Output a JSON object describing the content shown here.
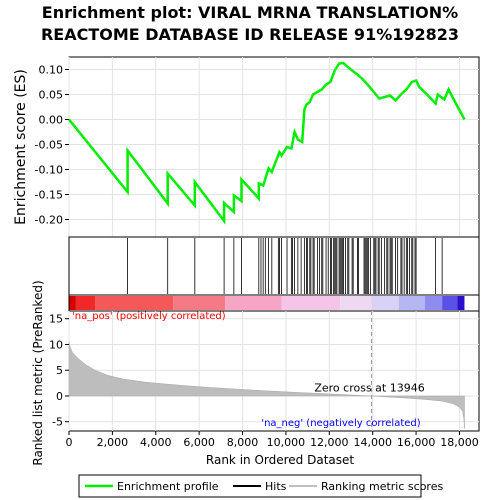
{
  "chart_data": {
    "type": "line",
    "title_lines": [
      "Enrichment plot: VIRAL MRNA TRANSLATION%",
      "REACTOME DATABASE ID RELEASE 91%192823"
    ],
    "top_panel": {
      "ylabel": "Enrichment score (ES)",
      "ylim": [
        -0.235,
        0.125
      ],
      "yticks": [
        -0.2,
        -0.15,
        -0.1,
        -0.05,
        0.0,
        0.05,
        0.1
      ],
      "ytick_labels": [
        "-0.20",
        "-0.15",
        "-0.10",
        "-0.05",
        "0.00",
        "0.05",
        "0.10"
      ],
      "series_name": "Enrichment profile",
      "color": "#00ee00",
      "x": [
        0,
        2700,
        2701,
        4550,
        4551,
        5800,
        5801,
        7150,
        7151,
        7600,
        7601,
        7950,
        7951,
        8750,
        8751,
        8950,
        9200,
        9350,
        9700,
        9800,
        10050,
        10250,
        10400,
        10550,
        10750,
        10850,
        10950,
        11100,
        11250,
        11450,
        11650,
        11850,
        12050,
        12250,
        12450,
        12650,
        12850,
        13050,
        13300,
        13550,
        13800,
        14050,
        14300,
        14550,
        14800,
        15050,
        15300,
        15550,
        15800,
        16000,
        16150,
        16550,
        16900,
        17000,
        17300,
        17500,
        17800,
        18230
      ],
      "y": [
        0.0,
        -0.145,
        -0.062,
        -0.168,
        -0.108,
        -0.172,
        -0.125,
        -0.203,
        -0.167,
        -0.185,
        -0.152,
        -0.163,
        -0.12,
        -0.158,
        -0.128,
        -0.132,
        -0.098,
        -0.105,
        -0.065,
        -0.072,
        -0.055,
        -0.058,
        -0.025,
        -0.04,
        -0.045,
        0.02,
        0.03,
        0.035,
        0.05,
        0.055,
        0.06,
        0.07,
        0.075,
        0.098,
        0.112,
        0.113,
        0.105,
        0.098,
        0.09,
        0.08,
        0.068,
        0.055,
        0.042,
        0.045,
        0.048,
        0.038,
        0.05,
        0.06,
        0.075,
        0.078,
        0.065,
        0.048,
        0.032,
        0.05,
        0.04,
        0.06,
        0.035,
        0.0
      ]
    },
    "hits": [
      2700,
      4550,
      5800,
      7150,
      7600,
      7950,
      8750,
      8850,
      8950,
      9050,
      9200,
      9350,
      9650,
      9700,
      9800,
      10050,
      10250,
      10300,
      10400,
      10550,
      10700,
      10850,
      10950,
      11000,
      11100,
      11150,
      11250,
      11300,
      11450,
      11550,
      11650,
      11700,
      11850,
      11950,
      12050,
      12100,
      12200,
      12250,
      12300,
      12350,
      12450,
      12500,
      12550,
      12600,
      12650,
      12750,
      12850,
      12900,
      13050,
      13100,
      13300,
      13350,
      13600,
      13650,
      13700,
      13750,
      13800,
      13900,
      14050,
      14100,
      14150,
      14250,
      14300,
      14400,
      14550,
      14650,
      14700,
      14800,
      14850,
      14900,
      15050,
      15150,
      15300,
      15350,
      15450,
      15550,
      15600,
      15700,
      15800,
      15850,
      15950,
      16000,
      16900,
      17200
    ],
    "hits_label": "Hits",
    "bottom_panel": {
      "ylabel": "Ranked list metric (PreRanked)",
      "xlabel": "Rank in Ordered Dataset",
      "xlim": [
        0,
        18900
      ],
      "ylim": [
        -6.8,
        16.5
      ],
      "yticks": [
        -5,
        0,
        5,
        10,
        15
      ],
      "ytick_labels": [
        "-5",
        "0",
        "5",
        "10",
        "15"
      ],
      "xticks": [
        0,
        2000,
        4000,
        6000,
        8000,
        10000,
        12000,
        14000,
        16000,
        18000
      ],
      "xtick_labels": [
        "0",
        "2,000",
        "4,000",
        "6,000",
        "8,000",
        "10,000",
        "12,000",
        "14,000",
        "16,000",
        "18,000"
      ],
      "series_name": "Ranking metric scores",
      "metric_x": [
        0,
        50,
        150,
        300,
        500,
        800,
        1200,
        1800,
        2500,
        3500,
        4500,
        5500,
        6500,
        7500,
        8500,
        9500,
        10500,
        11500,
        12500,
        13500,
        13946,
        14500,
        15500,
        16500,
        17200,
        17700,
        18000,
        18150,
        18200,
        18230
      ],
      "metric_y": [
        10.5,
        9.6,
        8.5,
        7.8,
        7.0,
        6.0,
        5.0,
        4.0,
        3.3,
        2.7,
        2.3,
        1.95,
        1.65,
        1.4,
        1.15,
        0.9,
        0.7,
        0.5,
        0.3,
        0.1,
        0.0,
        -0.15,
        -0.4,
        -0.7,
        -1.0,
        -1.5,
        -2.2,
        -3.0,
        -4.5,
        -6.3
      ],
      "zero_cross_rank": 13946,
      "zero_cross_label": "Zero cross at 13946",
      "pos_label": "'na_pos' (positively correlated)",
      "neg_label": "'na_neg' (negatively correlated)",
      "pos_label_color": "#ff0000",
      "neg_label_color": "#0000ff"
    },
    "total_genes": 18230,
    "legend": [
      {
        "label": "Enrichment profile",
        "color": "#00ee00"
      },
      {
        "label": "Hits",
        "color": "#000000"
      },
      {
        "label": "Ranking metric scores",
        "color": "#c0c0c0"
      }
    ]
  }
}
